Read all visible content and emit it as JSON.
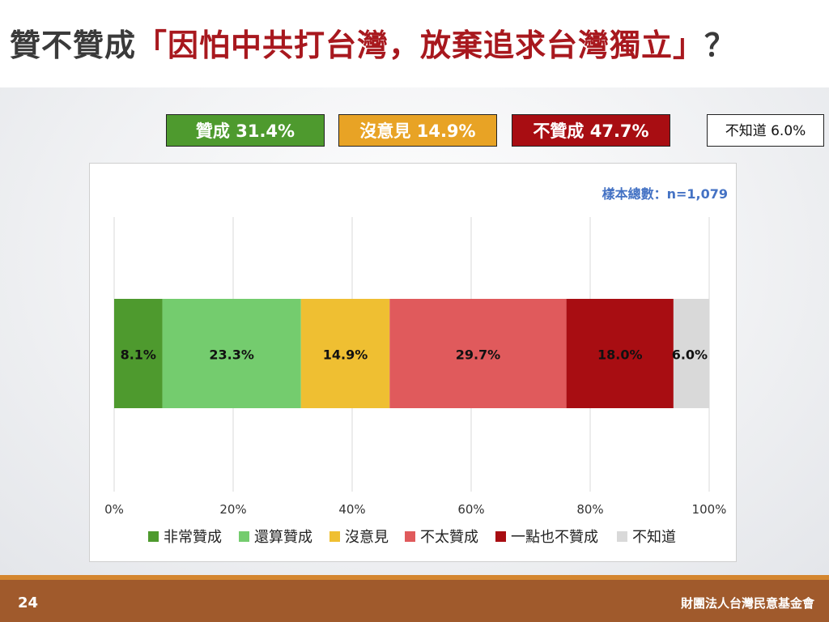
{
  "title": {
    "prefix": "贊不贊成",
    "highlight": "「因怕中共打台灣，放棄追求台灣獨立」",
    "suffix": "？"
  },
  "summary": [
    {
      "label": "贊成 31.4%",
      "color": "#4e9a2e"
    },
    {
      "label": "沒意見 14.9%",
      "color": "#e8a325"
    },
    {
      "label": "不贊成 47.7%",
      "color": "#a80d12"
    },
    {
      "label": "不知道 6.0%",
      "color": "#ffffff"
    }
  ],
  "sample_note": "樣本總數：n=1,079",
  "chart_data": {
    "type": "bar",
    "orientation": "horizontal",
    "stacked": true,
    "xlim": [
      0,
      100
    ],
    "x_ticks": [
      "0%",
      "20%",
      "40%",
      "60%",
      "80%",
      "100%"
    ],
    "grid": true,
    "legend_position": "bottom",
    "series": [
      {
        "name": "非常贊成",
        "value": 8.1,
        "label": "8.1%",
        "color": "#4e9a2e"
      },
      {
        "name": "還算贊成",
        "value": 23.3,
        "label": "23.3%",
        "color": "#74cc6e"
      },
      {
        "name": "沒意見",
        "value": 14.9,
        "label": "14.9%",
        "color": "#efbf32"
      },
      {
        "name": "不太贊成",
        "value": 29.7,
        "label": "29.7%",
        "color": "#e05a5c"
      },
      {
        "name": "一點也不贊成",
        "value": 18.0,
        "label": "18.0%",
        "color": "#a80d12"
      },
      {
        "name": "不知道",
        "value": 6.0,
        "label": "6.0%",
        "color": "#d9d9d9"
      }
    ]
  },
  "footer": {
    "page_number": "24",
    "organization": "財團法人台灣民意基金會"
  }
}
